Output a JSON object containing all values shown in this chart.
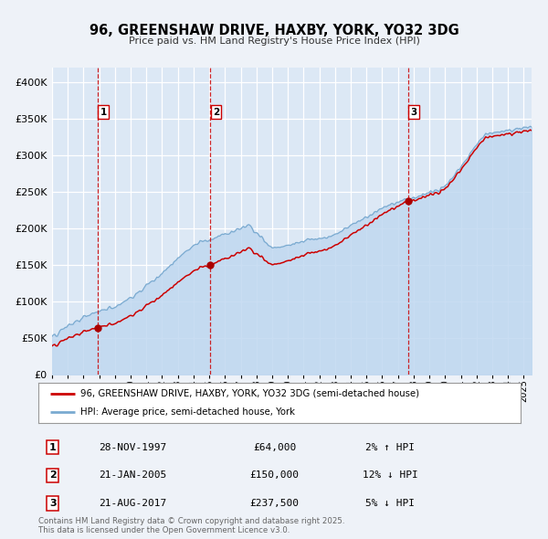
{
  "title": "96, GREENSHAW DRIVE, HAXBY, YORK, YO32 3DG",
  "subtitle": "Price paid vs. HM Land Registry's House Price Index (HPI)",
  "background_color": "#eef2f8",
  "plot_bg_color": "#dce8f5",
  "grid_color": "#ffffff",
  "ylim": [
    0,
    420000
  ],
  "yticks": [
    0,
    50000,
    100000,
    150000,
    200000,
    250000,
    300000,
    350000,
    400000
  ],
  "sale_dates_num": [
    1997.91,
    2005.07,
    2017.64
  ],
  "sale_prices": [
    64000,
    150000,
    237500
  ],
  "sale_labels": [
    "1",
    "2",
    "3"
  ],
  "vline_color": "#cc0000",
  "sale_dot_color": "#aa0000",
  "red_line_color": "#cc0000",
  "blue_fill_color": "#c0d8f0",
  "blue_line_color": "#7aaad0",
  "legend_label_red": "96, GREENSHAW DRIVE, HAXBY, YORK, YO32 3DG (semi-detached house)",
  "legend_label_blue": "HPI: Average price, semi-detached house, York",
  "table_rows": [
    [
      "1",
      "28-NOV-1997",
      "£64,000",
      "2% ↑ HPI"
    ],
    [
      "2",
      "21-JAN-2005",
      "£150,000",
      "12% ↓ HPI"
    ],
    [
      "3",
      "21-AUG-2017",
      "£237,500",
      "5% ↓ HPI"
    ]
  ],
  "footer_text": "Contains HM Land Registry data © Crown copyright and database right 2025.\nThis data is licensed under the Open Government Licence v3.0.",
  "xlim_start": 1995.0,
  "xlim_end": 2025.5
}
